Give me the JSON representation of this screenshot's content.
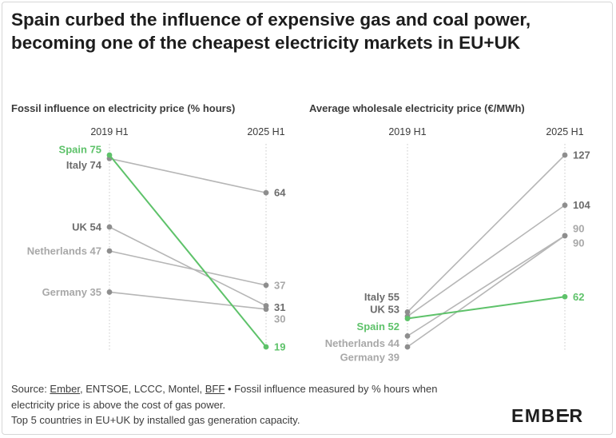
{
  "title": "Spain curbed the influence of expensive gas and coal power, becoming one of the cheapest electricity markets in EU+UK",
  "colors": {
    "highlight": "#5ec26a",
    "grey_dark": "#8e8e8e",
    "grey_light": "#b6b6b6",
    "axis": "#c8c8c8",
    "label_dark": "#6c6c6c",
    "label_light": "#a8a8a8"
  },
  "chart_data": [
    {
      "type": "line",
      "subtype": "slope",
      "title": "Fossil influence on electricity price (% hours)",
      "categories": [
        "2019 H1",
        "2025 H1"
      ],
      "ylim": [
        19,
        75
      ],
      "series": [
        {
          "name": "Spain",
          "values": [
            75,
            19
          ],
          "highlight": true,
          "start_label": "Spain 75",
          "end_label": "19"
        },
        {
          "name": "Italy",
          "values": [
            74,
            64
          ],
          "highlight": false,
          "start_label": "Italy 74",
          "end_label": "64"
        },
        {
          "name": "UK",
          "values": [
            54,
            31
          ],
          "highlight": false,
          "start_label": "UK 54",
          "end_label": "31"
        },
        {
          "name": "Netherlands",
          "values": [
            47,
            37
          ],
          "highlight": false,
          "start_label": "Netherlands 47",
          "end_label": "37"
        },
        {
          "name": "Germany",
          "values": [
            35,
            30
          ],
          "highlight": false,
          "start_label": "Germany 35",
          "end_label": "30"
        }
      ]
    },
    {
      "type": "line",
      "subtype": "slope",
      "title": "Average wholesale electricity price (€/MWh)",
      "categories": [
        "2019 H1",
        "2025 H1"
      ],
      "ylim": [
        39,
        127
      ],
      "series": [
        {
          "name": "Italy",
          "values": [
            55,
            127
          ],
          "highlight": false,
          "start_label": "Italy 55",
          "end_label": "127"
        },
        {
          "name": "UK",
          "values": [
            53,
            104
          ],
          "highlight": false,
          "start_label": "UK 53",
          "end_label": "104"
        },
        {
          "name": "Spain",
          "values": [
            52,
            62
          ],
          "highlight": true,
          "start_label": "Spain 52",
          "end_label": "62"
        },
        {
          "name": "Netherlands",
          "values": [
            44,
            90
          ],
          "highlight": false,
          "start_label": "Netherlands 44",
          "end_label": "90"
        },
        {
          "name": "Germany",
          "values": [
            39,
            90
          ],
          "highlight": false,
          "start_label": "Germany 39",
          "end_label": "90"
        }
      ]
    }
  ],
  "footer": {
    "source_prefix": "Source: ",
    "links": [
      "Ember",
      "BFF"
    ],
    "source_middle": ", ENTSOE, LCCC, Montel, ",
    "line1_rest": " • Fossil influence measured by % hours when",
    "line2": "electricity price is above the cost of gas power.",
    "line3": "Top 5 countries in EU+UK by installed gas generation capacity."
  },
  "logo": "EMBER"
}
